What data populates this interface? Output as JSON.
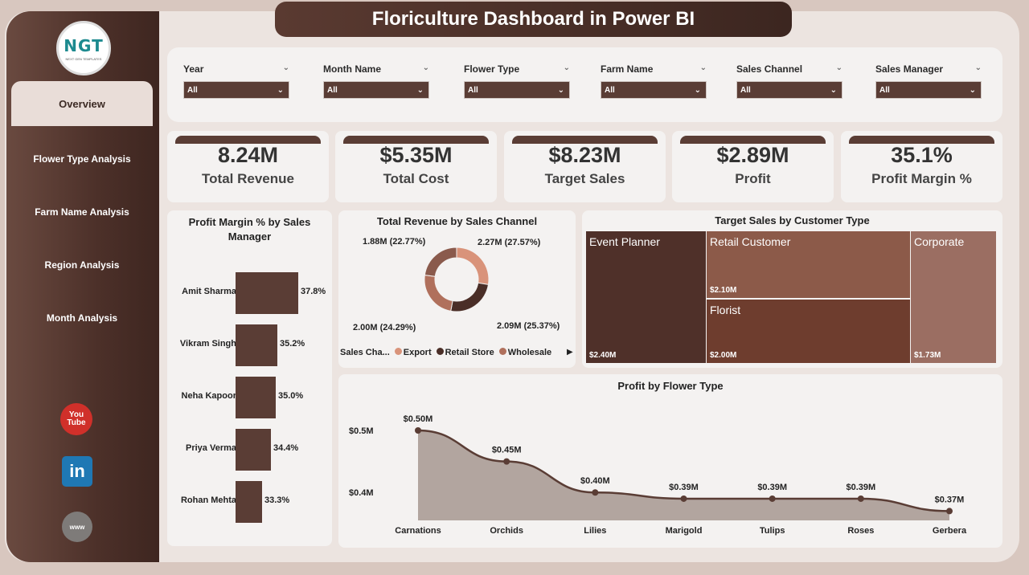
{
  "header": {
    "title": "Floriculture Dashboard in Power BI"
  },
  "logo": {
    "text": "NGT",
    "subtitle": "NEXT GEN TEMPLATES"
  },
  "nav": [
    {
      "label": "Overview",
      "active": true
    },
    {
      "label": "Flower Type Analysis"
    },
    {
      "label": "Farm Name Analysis"
    },
    {
      "label": "Region Analysis"
    },
    {
      "label": "Month Analysis"
    }
  ],
  "social": {
    "youtube": "You\nTube",
    "linkedin": "in",
    "web": "www"
  },
  "filters": [
    {
      "label": "Year",
      "value": "All"
    },
    {
      "label": "Month Name",
      "value": "All"
    },
    {
      "label": "Flower Type",
      "value": "All"
    },
    {
      "label": "Farm Name",
      "value": "All"
    },
    {
      "label": "Sales Channel",
      "value": "All"
    },
    {
      "label": "Sales Manager",
      "value": "All"
    }
  ],
  "kpis": [
    {
      "value": "8.24M",
      "label": "Total Revenue"
    },
    {
      "value": "$5.35M",
      "label": "Total Cost"
    },
    {
      "value": "$8.23M",
      "label": "Target Sales"
    },
    {
      "value": "$2.89M",
      "label": "Profit"
    },
    {
      "value": "35.1%",
      "label": "Profit Margin %"
    }
  ],
  "profit_margin": {
    "title": "Profit Margin % by Sales Manager",
    "rows": [
      {
        "name": "Amit Sharma",
        "value": 37.8,
        "label": "37.8%"
      },
      {
        "name": "Vikram Singh",
        "value": 35.2,
        "label": "35.2%"
      },
      {
        "name": "Neha Kapoor",
        "value": 35.0,
        "label": "35.0%"
      },
      {
        "name": "Priya Verma",
        "value": 34.4,
        "label": "34.4%"
      },
      {
        "name": "Rohan Mehta",
        "value": 33.3,
        "label": "33.3%"
      }
    ]
  },
  "revenue_channel": {
    "title": "Total Revenue by Sales Channel",
    "legend_title": "Sales Cha...",
    "slices": [
      {
        "name": "Export",
        "value": 2.27,
        "label": "2.27M (27.57%)",
        "color": "#d9937a"
      },
      {
        "name": "Retail Store",
        "value": 2.09,
        "label": "2.09M (25.37%)",
        "color": "#4a2e27"
      },
      {
        "name": "Wholesale",
        "value": 2.0,
        "label": "2.00M (24.29%)",
        "color": "#b0705c"
      },
      {
        "name": "",
        "value": 1.88,
        "label": "1.88M (22.77%)",
        "color": "#8a5a4c"
      }
    ]
  },
  "target_customer": {
    "title": "Target Sales by Customer Type",
    "cells": [
      {
        "name": "Event Planner",
        "value": "$2.40M",
        "color": "#4f3029"
      },
      {
        "name": "Retail Customer",
        "value": "$2.10M",
        "color": "#8c5a49"
      },
      {
        "name": "Florist",
        "value": "$2.00M",
        "color": "#6e3d2e"
      },
      {
        "name": "Corporate",
        "value": "$1.73M",
        "color": "#9b6e62"
      }
    ]
  },
  "chart_data": {
    "type": "area",
    "title": "Profit by Flower Type",
    "categories": [
      "Carnations",
      "Orchids",
      "Lilies",
      "Marigold",
      "Tulips",
      "Roses",
      "Gerbera"
    ],
    "values": [
      0.5,
      0.45,
      0.4,
      0.39,
      0.39,
      0.39,
      0.37
    ],
    "labels": [
      "$0.50M",
      "$0.45M",
      "$0.40M",
      "$0.39M",
      "$0.39M",
      "$0.39M",
      "$0.37M"
    ],
    "yticks": [
      "$0.5M",
      "$0.4M"
    ],
    "ytick_values": [
      0.5,
      0.4
    ],
    "fill": "#b2a59f",
    "line": "#5a3d35"
  }
}
